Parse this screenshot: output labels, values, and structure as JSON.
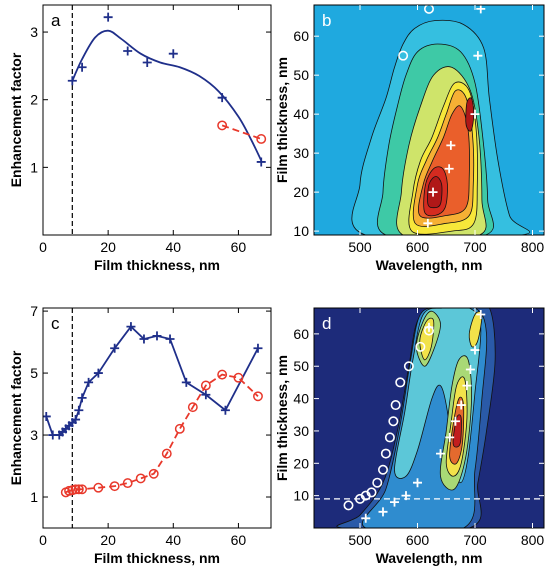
{
  "chart_data": [
    {
      "panel": "a",
      "type": "line",
      "xlabel": "Film thickness, nm",
      "ylabel": "Enhancement factor",
      "xlim": [
        0,
        70
      ],
      "ylim": [
        0,
        3.4
      ],
      "xticks": [
        0,
        20,
        40,
        60
      ],
      "yticks": [
        1,
        2,
        3
      ],
      "vline_x": 9,
      "grid": false,
      "series": [
        {
          "color": "#1f2f8a",
          "marker": "plus",
          "line": "none",
          "x": [
            9,
            12,
            20,
            26,
            32,
            40,
            55,
            67
          ],
          "y": [
            2.28,
            2.48,
            3.22,
            2.72,
            2.55,
            2.68,
            2.03,
            1.08
          ]
        },
        {
          "color": "#1f2f8a",
          "marker": "none",
          "line": "solid",
          "x": [
            9,
            12,
            16,
            20,
            24,
            30,
            36,
            42,
            48,
            54,
            60,
            64,
            67
          ],
          "y": [
            2.28,
            2.6,
            2.92,
            3.02,
            2.9,
            2.68,
            2.55,
            2.48,
            2.35,
            2.12,
            1.75,
            1.4,
            1.1
          ]
        },
        {
          "color": "#e8382b",
          "marker": "circle",
          "line": "dashed",
          "x": [
            55,
            67
          ],
          "y": [
            1.62,
            1.42
          ]
        }
      ]
    },
    {
      "panel": "b",
      "type": "heatmap",
      "xlabel": "Wavelength, nm",
      "ylabel": "Film thickness, nm",
      "xlim": [
        420,
        820
      ],
      "ylim": [
        9,
        68
      ],
      "xticks": [
        500,
        600,
        700,
        800
      ],
      "yticks": [
        10,
        20,
        30,
        40,
        50,
        60
      ],
      "background": "#1fa9df",
      "contours": [
        {
          "color": "#35bfe0",
          "points": [
            [
              510,
              9
            ],
            [
              500,
              22
            ],
            [
              520,
              34
            ],
            [
              545,
              44
            ],
            [
              560,
              52
            ],
            [
              575,
              58
            ],
            [
              595,
              62
            ],
            [
              630,
              64
            ],
            [
              680,
              63
            ],
            [
              715,
              57
            ],
            [
              725,
              44
            ],
            [
              740,
              28
            ],
            [
              760,
              14
            ],
            [
              780,
              9
            ]
          ]
        },
        {
          "color": "#3ec9a6",
          "points": [
            [
              545,
              9
            ],
            [
              540,
              20
            ],
            [
              550,
              32
            ],
            [
              565,
              42
            ],
            [
              580,
              50
            ],
            [
              600,
              56
            ],
            [
              635,
              58
            ],
            [
              675,
              56
            ],
            [
              700,
              48
            ],
            [
              715,
              32
            ],
            [
              722,
              18
            ],
            [
              718,
              9
            ]
          ]
        },
        {
          "color": "#cfe46a",
          "points": [
            [
              575,
              9
            ],
            [
              572,
              20
            ],
            [
              585,
              32
            ],
            [
              605,
              42
            ],
            [
              628,
              50
            ],
            [
              660,
              52
            ],
            [
              692,
              46
            ],
            [
              707,
              34
            ],
            [
              712,
              18
            ],
            [
              708,
              9
            ]
          ]
        },
        {
          "color": "#f7e73a",
          "points": [
            [
              590,
              10
            ],
            [
              592,
              20
            ],
            [
              605,
              28
            ],
            [
              625,
              34
            ],
            [
              645,
              42
            ],
            [
              665,
              48
            ],
            [
              690,
              46
            ],
            [
              702,
              36
            ],
            [
              704,
              22
            ],
            [
              698,
              12
            ],
            [
              660,
              10
            ]
          ]
        },
        {
          "color": "#f6b034",
          "points": [
            [
              596,
              12
            ],
            [
              600,
              22
            ],
            [
              615,
              28
            ],
            [
              635,
              34
            ],
            [
              650,
              40
            ],
            [
              666,
              46
            ],
            [
              685,
              44
            ],
            [
              696,
              34
            ],
            [
              697,
              22
            ],
            [
              690,
              14
            ],
            [
              650,
              12
            ]
          ]
        },
        {
          "color": "#ea5f2b",
          "points": [
            [
              604,
              14
            ],
            [
              610,
              22
            ],
            [
              626,
              28
            ],
            [
              645,
              34
            ],
            [
              660,
              40
            ],
            [
              675,
              42
            ],
            [
              688,
              36
            ],
            [
              690,
              24
            ],
            [
              684,
              16
            ],
            [
              650,
              14
            ]
          ]
        },
        {
          "color": "#d42b20",
          "points": [
            [
              612,
              15
            ],
            [
              614,
              22
            ],
            [
              628,
              26
            ],
            [
              644,
              26
            ],
            [
              652,
              22
            ],
            [
              648,
              16
            ],
            [
              630,
              14
            ]
          ]
        },
        {
          "color": "#b01818",
          "points": [
            [
              618,
              17
            ],
            [
              620,
              22
            ],
            [
              632,
              24
            ],
            [
              642,
              22
            ],
            [
              640,
              17
            ],
            [
              628,
              16
            ]
          ]
        },
        {
          "color": "#b01818",
          "points": [
            [
              684,
              38
            ],
            [
              686,
              43
            ],
            [
              694,
              44
            ],
            [
              698,
              40
            ],
            [
              694,
              36
            ],
            [
              688,
              36
            ]
          ]
        }
      ],
      "markers_plus": [
        [
          627,
          20
        ],
        [
          655,
          26
        ],
        [
          658,
          32
        ],
        [
          700,
          40
        ],
        [
          705,
          55
        ],
        [
          618,
          12
        ],
        [
          710,
          67
        ]
      ],
      "markers_circle": [
        [
          575,
          55
        ],
        [
          620,
          67
        ]
      ]
    },
    {
      "panel": "c",
      "type": "line",
      "xlabel": "Film thickness, nm",
      "ylabel": "Enhancement factor",
      "xlim": [
        0,
        70
      ],
      "ylim": [
        0,
        7.1
      ],
      "xticks": [
        0,
        20,
        40,
        60
      ],
      "yticks": [
        1,
        3,
        5,
        7
      ],
      "vline_x": 9,
      "grid": false,
      "series": [
        {
          "color": "#1f2f8a",
          "marker": "plus",
          "line": "solid",
          "x": [
            1,
            3,
            5,
            6,
            7,
            8,
            9,
            10,
            11,
            12,
            14,
            17,
            22,
            27,
            31,
            35,
            39,
            44,
            50,
            56,
            66
          ],
          "y": [
            3.6,
            3.0,
            3.0,
            3.1,
            3.2,
            3.3,
            3.4,
            3.5,
            3.8,
            4.2,
            4.7,
            5.0,
            5.8,
            6.5,
            6.1,
            6.2,
            6.1,
            4.7,
            4.3,
            3.8,
            5.8
          ]
        },
        {
          "color": "#e8382b",
          "marker": "circle",
          "line": "dashed",
          "x": [
            7,
            8,
            9,
            10,
            11,
            12,
            17,
            22,
            26,
            30,
            34,
            38,
            42,
            46,
            50,
            55,
            60,
            66
          ],
          "y": [
            1.15,
            1.2,
            1.22,
            1.25,
            1.25,
            1.25,
            1.3,
            1.35,
            1.45,
            1.6,
            1.75,
            2.4,
            3.2,
            3.9,
            4.6,
            4.95,
            4.85,
            4.25
          ]
        }
      ]
    },
    {
      "panel": "d",
      "type": "heatmap",
      "xlabel": "Wavelength, nm",
      "ylabel": "Film thickness, nm",
      "xlim": [
        420,
        820
      ],
      "ylim": [
        0,
        68
      ],
      "xticks": [
        500,
        600,
        700,
        800
      ],
      "yticks": [
        10,
        20,
        30,
        40,
        50,
        60
      ],
      "background": "#1d2b7a",
      "hline_y": 9,
      "contours": [
        {
          "color": "#2a5aa8",
          "points": [
            [
              470,
              0
            ],
            [
              500,
              4
            ],
            [
              540,
              14
            ],
            [
              565,
              30
            ],
            [
              585,
              50
            ],
            [
              600,
              64
            ],
            [
              630,
              68
            ],
            [
              690,
              68
            ],
            [
              725,
              68
            ],
            [
              735,
              52
            ],
            [
              720,
              30
            ],
            [
              705,
              14
            ],
            [
              690,
              0
            ]
          ]
        },
        {
          "color": "#2f8ccf",
          "points": [
            [
              510,
              0
            ],
            [
              545,
              12
            ],
            [
              570,
              32
            ],
            [
              588,
              52
            ],
            [
              605,
              66
            ],
            [
              640,
              68
            ],
            [
              700,
              68
            ],
            [
              720,
              60
            ],
            [
              712,
              40
            ],
            [
              700,
              18
            ],
            [
              680,
              0
            ]
          ]
        },
        {
          "color": "#5cc7d8",
          "points": [
            [
              560,
              18
            ],
            [
              578,
              36
            ],
            [
              592,
              52
            ],
            [
              610,
              66
            ],
            [
              645,
              68
            ],
            [
              690,
              68
            ],
            [
              710,
              62
            ],
            [
              700,
              42
            ],
            [
              688,
              22
            ],
            [
              675,
              14
            ],
            [
              660,
              22
            ],
            [
              652,
              36
            ],
            [
              640,
              44
            ],
            [
              625,
              40
            ],
            [
              600,
              24
            ],
            [
              580,
              16
            ]
          ]
        },
        {
          "color": "#a9d976",
          "points": [
            [
              598,
              56
            ],
            [
              610,
              64
            ],
            [
              625,
              67
            ],
            [
              640,
              63
            ],
            [
              628,
              55
            ],
            [
              612,
              50
            ]
          ]
        },
        {
          "color": "#a9d976",
          "points": [
            [
              640,
              16
            ],
            [
              650,
              30
            ],
            [
              660,
              44
            ],
            [
              672,
              52
            ],
            [
              688,
              52
            ],
            [
              694,
              40
            ],
            [
              684,
              22
            ],
            [
              664,
              12
            ]
          ]
        },
        {
          "color": "#f2e24a",
          "points": [
            [
              604,
              58
            ],
            [
              616,
              64
            ],
            [
              628,
              64
            ],
            [
              624,
              56
            ],
            [
              612,
              52
            ]
          ]
        },
        {
          "color": "#f2e24a",
          "points": [
            [
              650,
              20
            ],
            [
              658,
              32
            ],
            [
              668,
              44
            ],
            [
              682,
              46
            ],
            [
              686,
              34
            ],
            [
              676,
              20
            ],
            [
              662,
              16
            ]
          ]
        },
        {
          "color": "#e46a2e",
          "points": [
            [
              656,
              22
            ],
            [
              662,
              32
            ],
            [
              672,
              40
            ],
            [
              680,
              38
            ],
            [
              678,
              26
            ],
            [
              668,
              20
            ]
          ]
        },
        {
          "color": "#c21e1e",
          "points": [
            [
              662,
              26
            ],
            [
              668,
              34
            ],
            [
              676,
              34
            ],
            [
              674,
              26
            ]
          ]
        },
        {
          "color": "#f2e24a",
          "points": [
            [
              690,
              60
            ],
            [
              700,
              66
            ],
            [
              712,
              66
            ],
            [
              705,
              58
            ],
            [
              695,
              56
            ]
          ]
        }
      ],
      "markers_plus": [
        [
          510,
          3
        ],
        [
          540,
          5
        ],
        [
          560,
          8
        ],
        [
          580,
          10
        ],
        [
          600,
          14
        ],
        [
          640,
          23
        ],
        [
          656,
          28
        ],
        [
          666,
          33
        ],
        [
          676,
          38
        ],
        [
          686,
          44
        ],
        [
          692,
          49
        ],
        [
          700,
          55
        ],
        [
          710,
          66
        ],
        [
          620,
          62
        ]
      ],
      "markers_circle": [
        [
          480,
          7
        ],
        [
          500,
          9
        ],
        [
          510,
          10
        ],
        [
          520,
          11
        ],
        [
          530,
          14
        ],
        [
          540,
          18
        ],
        [
          545,
          23
        ],
        [
          552,
          28
        ],
        [
          558,
          33
        ],
        [
          562,
          38
        ],
        [
          570,
          45
        ],
        [
          585,
          50
        ],
        [
          605,
          56
        ],
        [
          620,
          61
        ]
      ]
    }
  ]
}
